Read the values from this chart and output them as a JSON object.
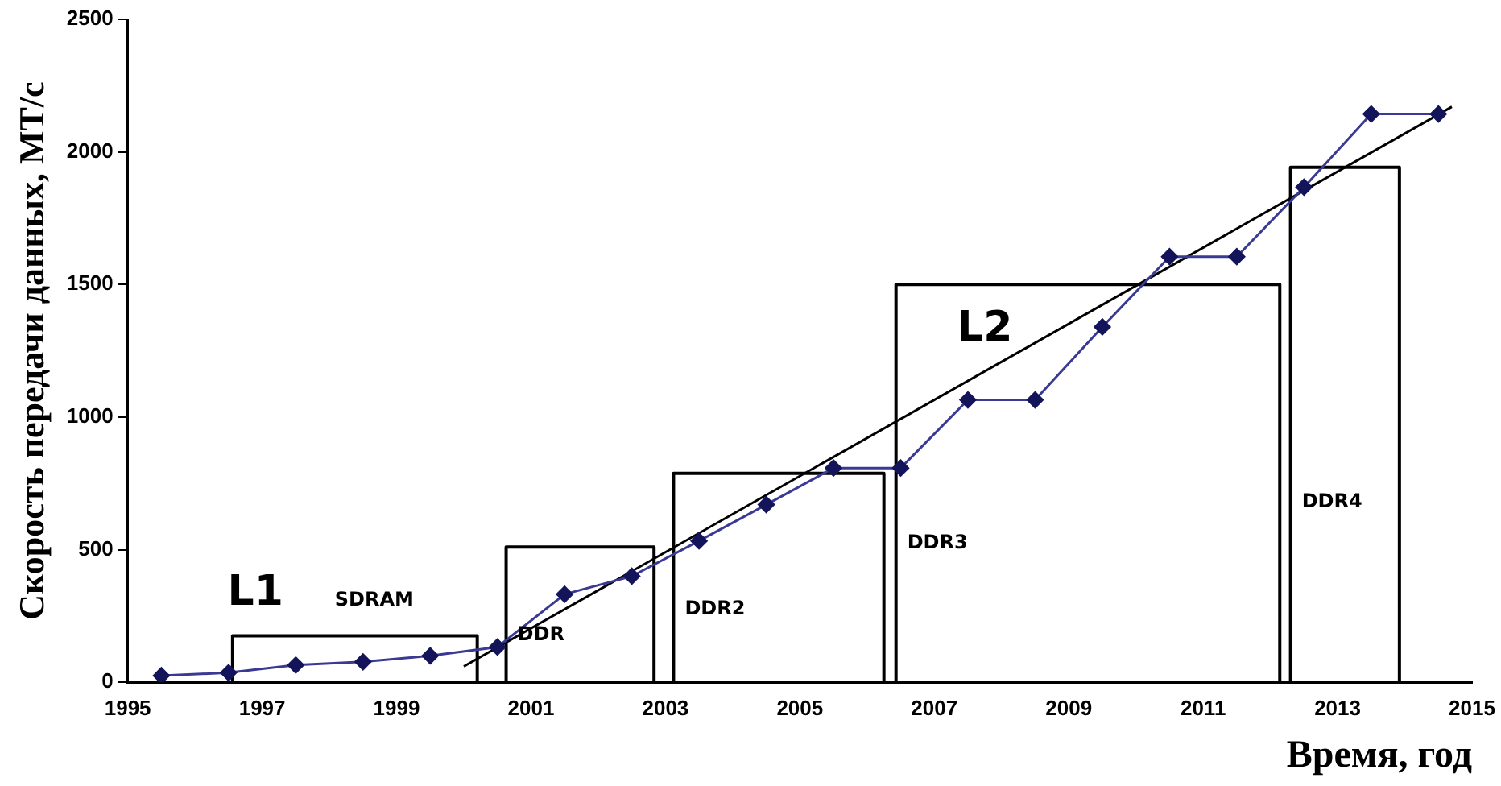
{
  "chart_data": {
    "type": "line",
    "xlabel": "Время, год",
    "ylabel": "Скорость передачи данных, МТ/с",
    "xlim": [
      1995,
      2015
    ],
    "xticks": [
      1995,
      1997,
      1999,
      2001,
      2003,
      2005,
      2007,
      2009,
      2011,
      2013,
      2015
    ],
    "ylim": [
      0,
      2500
    ],
    "yticks": [
      0,
      500,
      1000,
      1500,
      2000,
      2500
    ],
    "grid": false,
    "legend": false,
    "marker": "diamond",
    "series": [
      {
        "color": "#3a3a94",
        "x": [
          1995.5,
          1996.5,
          1997.5,
          1998.5,
          1999.5,
          2000.5,
          2001.5,
          2002.5,
          2003.5,
          2004.5,
          2005.5,
          2006.5,
          2007.5,
          2008.5,
          2009.5,
          2010.5,
          2011.5,
          2012.5,
          2013.5,
          2014.5
        ],
        "values": [
          25,
          36,
          65,
          77,
          100,
          133,
          332,
          400,
          533,
          670,
          808,
          808,
          1065,
          1065,
          1340,
          1605,
          1605,
          1867,
          2143,
          2143
        ]
      },
      {
        "color": "#000000",
        "marker": "none",
        "x": [
          2000,
          2014.7
        ],
        "values": [
          60,
          2170
        ]
      },
      {
        "name": "SDRAM",
        "color": "#000000",
        "marker": "none",
        "x": [
          1996.56,
          1996.56,
          2000.2,
          2000.2
        ],
        "values": [
          0,
          175,
          175,
          0
        ]
      },
      {
        "name": "DDR",
        "color": "#000000",
        "marker": "none",
        "x": [
          2000.63,
          2000.63,
          2002.83,
          2002.83
        ],
        "values": [
          0,
          510,
          510,
          0
        ]
      },
      {
        "name": "DDR2",
        "color": "#000000",
        "marker": "none",
        "x": [
          2003.12,
          2003.12,
          2006.25,
          2006.25
        ],
        "values": [
          0,
          788,
          788,
          0
        ]
      },
      {
        "name": "DDR3",
        "color": "#000000",
        "marker": "none",
        "x": [
          2006.43,
          2006.43,
          2012.14,
          2012.14
        ],
        "values": [
          0,
          1500,
          1500,
          0
        ]
      },
      {
        "name": "DDR4",
        "color": "#000000",
        "marker": "none",
        "x": [
          2012.3,
          2012.3,
          2013.92,
          2013.92
        ],
        "values": [
          0,
          1942,
          1942,
          0
        ]
      }
    ],
    "annotations": [
      {
        "text": "L1",
        "x": 1996.9,
        "y": 175
      },
      {
        "text": "L2",
        "x": 2007.75,
        "y": 1172
      }
    ]
  }
}
